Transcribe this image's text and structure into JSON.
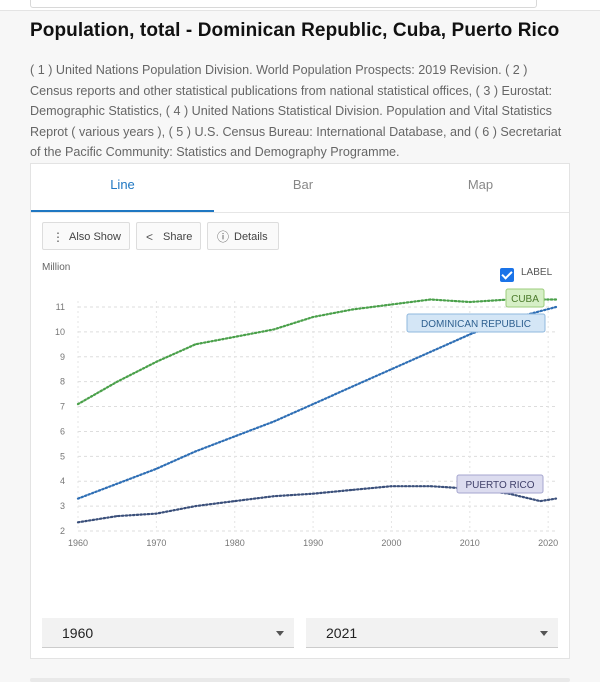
{
  "page": {
    "title": "Population, total - Dominican Republic, Cuba, Puerto Rico",
    "sources": "( 1 ) United Nations Population Division. World Population Prospects: 2019 Revision. ( 2 ) Census reports and other statistical publications from national statistical offices, ( 3 ) Eurostat: Demographic Statistics, ( 4 ) United Nations Statistical Division. Population and Vital Statistics Reprot ( various years ), ( 5 ) U.S. Census Bureau: International Database, and ( 6 ) Secretariat of the Pacific Community: Statistics and Demography Programme."
  },
  "tabs": [
    "Line",
    "Bar",
    "Map"
  ],
  "toolbar": {
    "also_show": "Also Show",
    "share": "Share",
    "details": "Details"
  },
  "label_toggle": {
    "text": "LABEL",
    "checked": true
  },
  "range": {
    "start": "1960",
    "end": "2021"
  },
  "colors": {
    "accent": "#1f77c2",
    "cuba": "#4aa04a",
    "dominican": "#2f6fb5",
    "puerto_rico": "#3a4f7a"
  },
  "chart_data": {
    "type": "line",
    "ylabel": "Million",
    "ylim": [
      2,
      11
    ],
    "yticks": [
      2,
      3,
      4,
      5,
      6,
      7,
      8,
      9,
      10,
      11
    ],
    "xlim": [
      1960,
      2021
    ],
    "xticks": [
      1960,
      1970,
      1980,
      1990,
      2000,
      2010,
      2020
    ],
    "grid": true,
    "series": [
      {
        "name": "CUBA",
        "color": "#4aa04a",
        "x": [
          1960,
          1965,
          1970,
          1975,
          1980,
          1985,
          1990,
          1995,
          2000,
          2005,
          2010,
          2015,
          2021
        ],
        "values": [
          7.1,
          8.0,
          8.8,
          9.5,
          9.8,
          10.1,
          10.6,
          10.9,
          11.1,
          11.3,
          11.2,
          11.3,
          11.3
        ]
      },
      {
        "name": "DOMINICAN REPUBLIC",
        "color": "#2f6fb5",
        "x": [
          1960,
          1965,
          1970,
          1975,
          1980,
          1985,
          1990,
          1995,
          2000,
          2005,
          2010,
          2015,
          2021
        ],
        "values": [
          3.3,
          3.9,
          4.5,
          5.2,
          5.8,
          6.4,
          7.1,
          7.8,
          8.5,
          9.2,
          9.9,
          10.5,
          11.0
        ]
      },
      {
        "name": "PUERTO RICO",
        "color": "#3a4f7a",
        "x": [
          1960,
          1965,
          1970,
          1975,
          1980,
          1985,
          1990,
          1995,
          2000,
          2005,
          2010,
          2015,
          2019,
          2021
        ],
        "values": [
          2.35,
          2.6,
          2.7,
          3.0,
          3.2,
          3.4,
          3.5,
          3.65,
          3.8,
          3.8,
          3.7,
          3.5,
          3.2,
          3.3
        ]
      }
    ]
  }
}
